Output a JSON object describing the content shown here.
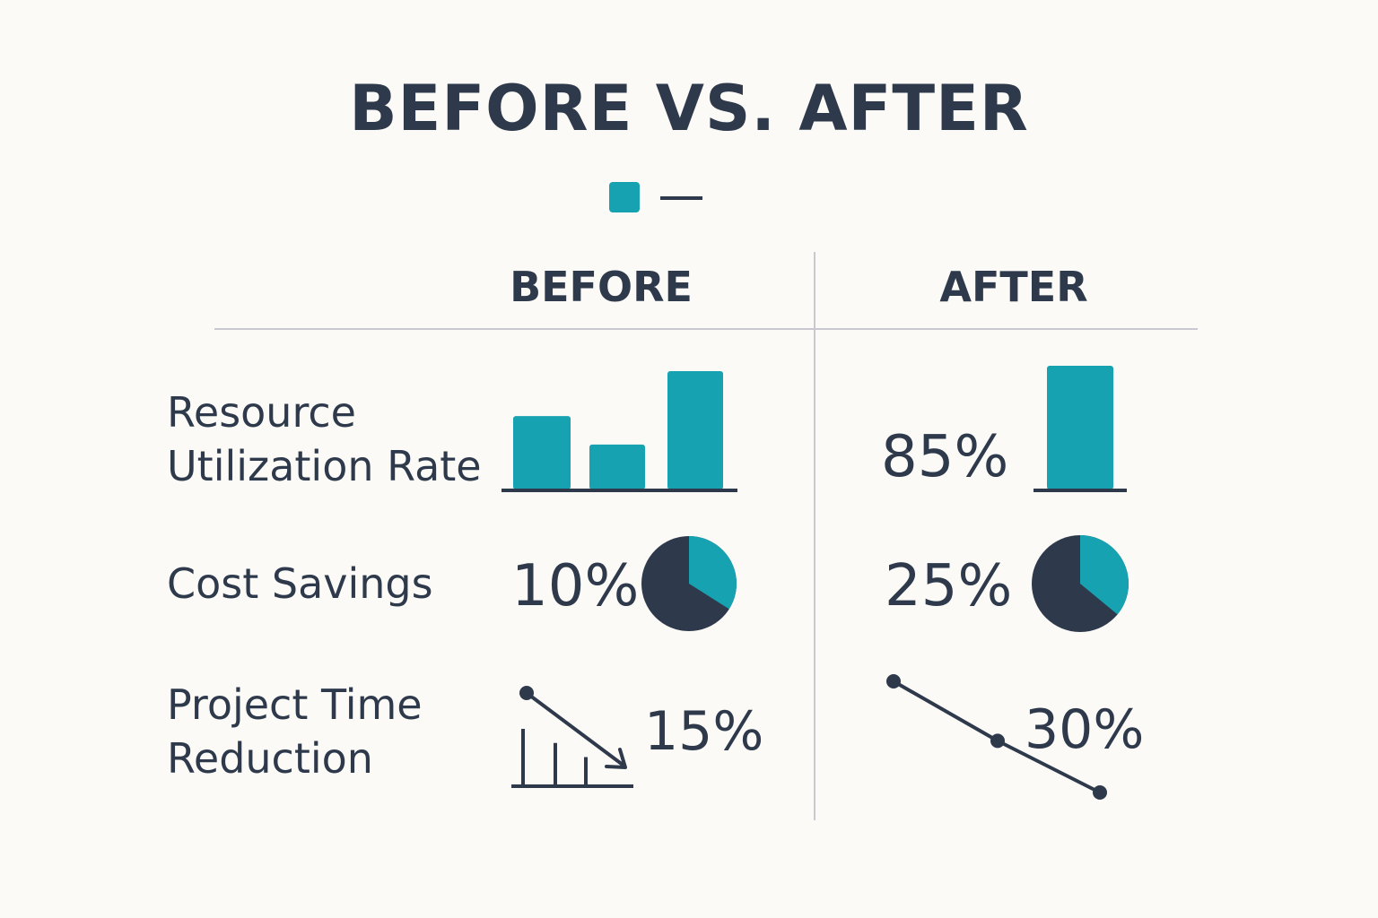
{
  "title": "BEFORE VS. AFTER",
  "legend": {
    "swatch_color": "#17a2b2",
    "line_label": "—"
  },
  "columns": {
    "before": "BEFORE",
    "after": "AFTER"
  },
  "colors": {
    "teal": "#17a2b2",
    "navy": "#2e3a4b",
    "rule": "#c9c7cf"
  },
  "chart_data": [
    {
      "type": "bar",
      "metric": "Resource Utilization Rate",
      "panel": "BEFORE",
      "values": [
        0.62,
        0.38,
        1.0
      ]
    },
    {
      "type": "bar",
      "metric": "Resource Utilization Rate",
      "panel": "AFTER",
      "values": [
        85
      ],
      "label": "85%"
    },
    {
      "type": "pie",
      "metric": "Cost Savings",
      "panel": "BEFORE",
      "teal_share": 0.34,
      "label": "10%"
    },
    {
      "type": "pie",
      "metric": "Cost Savings",
      "panel": "AFTER",
      "teal_share": 0.36,
      "label": "25%"
    },
    {
      "type": "line",
      "metric": "Project Time Reduction",
      "panel": "BEFORE",
      "label": "15%",
      "bars": [
        1.0,
        0.75,
        0.5
      ]
    },
    {
      "type": "line",
      "metric": "Project Time Reduction",
      "panel": "AFTER",
      "values": [
        1.0,
        0.4,
        0.0
      ],
      "label": "30%"
    }
  ],
  "rows": {
    "resource": {
      "line1": "Resource",
      "line2": "Utilization Rate"
    },
    "cost": {
      "line1": "Cost Savings"
    },
    "project": {
      "line1": "Project Time",
      "line2": "Reduction"
    }
  }
}
